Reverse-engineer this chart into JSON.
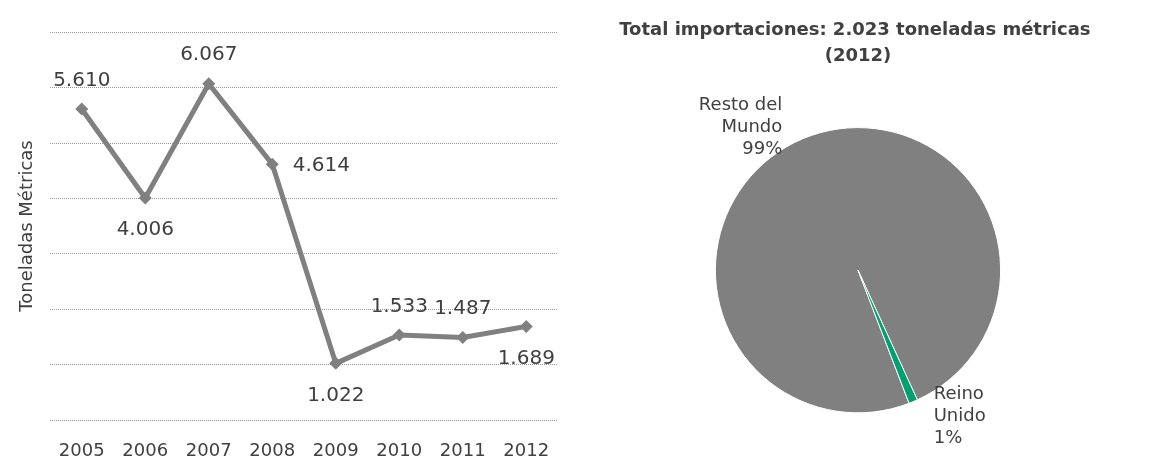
{
  "chart_data": [
    {
      "type": "line",
      "ylabel": "Toneladas Métricas",
      "categories": [
        "2005",
        "2006",
        "2007",
        "2008",
        "2009",
        "2010",
        "2011",
        "2012"
      ],
      "series": [
        {
          "color": "#808080",
          "values": [
            5610,
            4006,
            6067,
            4614,
            1022,
            1533,
            1487,
            1689
          ],
          "value_labels": [
            "5.610",
            "4.006",
            "6.067",
            "4.614",
            "1.022",
            "1.533",
            "1.487",
            "1.689"
          ]
        }
      ],
      "ylim": [
        0,
        7000
      ],
      "yticks": [
        {
          "value": 0,
          "label": null
        },
        {
          "value": 1000,
          "label": null
        },
        {
          "value": 2000,
          "label": null
        },
        {
          "value": 3000,
          "label": null
        },
        {
          "value": 4000,
          "label": null
        },
        {
          "value": 5000,
          "label": null
        },
        {
          "value": 6000,
          "label": null
        },
        {
          "value": 7000,
          "label": null
        }
      ],
      "tick_labels": "x",
      "grid": "y",
      "marker": "diamond",
      "line_style": "solid",
      "legend": false
    },
    {
      "type": "pie",
      "title": "Total importaciones: 2.023 toneladas métricas (2012)",
      "categories": [
        "Resto del Mundo",
        "Reino Unido"
      ],
      "values": [
        99,
        1
      ],
      "value_labels": [
        "99%",
        "1%"
      ],
      "colors": [
        "#808080",
        "#00a070"
      ],
      "legend": false
    }
  ]
}
